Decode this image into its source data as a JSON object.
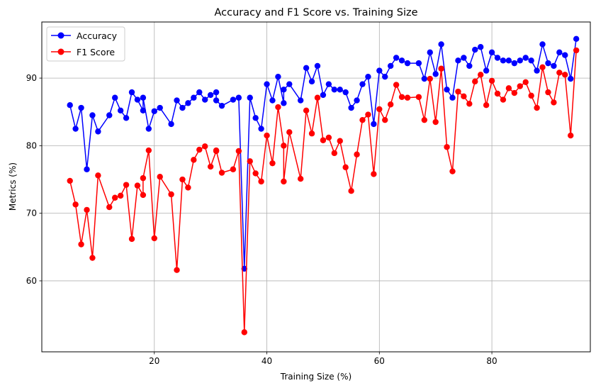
{
  "chart_data": {
    "type": "line",
    "title": "Accuracy and F1 Score vs. Training Size",
    "xlabel": "Training Size (%)",
    "ylabel": "Metrics (%)",
    "xlim": [
      0,
      97.5
    ],
    "ylim": [
      49.5,
      98.3
    ],
    "xticks": [
      20,
      40,
      60,
      80
    ],
    "yticks": [
      60,
      70,
      80,
      90
    ],
    "grid": true,
    "legend_position": "top-left",
    "x": [
      5,
      6,
      7,
      8,
      9,
      10,
      12,
      13,
      14,
      15,
      16,
      17,
      18,
      18,
      19,
      20,
      21,
      23,
      24,
      25,
      26,
      27,
      28,
      29,
      30,
      31,
      31,
      32,
      34,
      35,
      36,
      37,
      38,
      39,
      40,
      41,
      42,
      43,
      43,
      44,
      46,
      47,
      48,
      49,
      50,
      51,
      52,
      53,
      54,
      55,
      56,
      57,
      58,
      59,
      60,
      61,
      62,
      63,
      64,
      65,
      67,
      68,
      69,
      70,
      71,
      72,
      73,
      74,
      75,
      76,
      77,
      78,
      79,
      80,
      81,
      82,
      83,
      84,
      85,
      86,
      87,
      88,
      89,
      90,
      91,
      92,
      93,
      94,
      95
    ],
    "series": [
      {
        "name": "Accuracy",
        "color": "#0000ff",
        "values": [
          86.0,
          82.5,
          85.6,
          76.5,
          84.5,
          82.1,
          84.5,
          87.1,
          85.2,
          84.1,
          87.9,
          86.8,
          85.2,
          87.1,
          82.5,
          85.1,
          85.6,
          83.2,
          86.7,
          85.6,
          86.3,
          87.1,
          87.9,
          86.8,
          87.5,
          87.9,
          86.7,
          85.9,
          86.8,
          87.1,
          61.8,
          87.1,
          84.1,
          82.5,
          89.1,
          86.7,
          90.2,
          86.3,
          88.3,
          89.1,
          86.7,
          91.5,
          89.5,
          91.8,
          87.5,
          89.1,
          88.3,
          88.3,
          87.9,
          85.6,
          86.7,
          89.1,
          90.2,
          83.2,
          91.1,
          90.2,
          91.8,
          93.0,
          92.6,
          92.2,
          92.2,
          89.9,
          93.8,
          90.6,
          95.0,
          88.3,
          87.1,
          92.6,
          93.0,
          91.8,
          94.2,
          94.6,
          91.1,
          93.8,
          93.0,
          92.6,
          92.6,
          92.2,
          92.6,
          93.0,
          92.6,
          91.1,
          95.0,
          92.2,
          91.8,
          93.8,
          93.4,
          89.9,
          95.8
        ]
      },
      {
        "name": "F1 Score",
        "color": "#ff0000",
        "values": [
          74.8,
          71.3,
          65.4,
          70.5,
          63.4,
          75.6,
          70.9,
          72.3,
          72.6,
          74.2,
          66.2,
          74.1,
          72.7,
          75.2,
          79.3,
          66.3,
          75.4,
          72.8,
          61.6,
          75.0,
          73.8,
          77.9,
          79.4,
          79.9,
          76.9,
          79.2,
          79.3,
          76.0,
          76.5,
          79.2,
          52.4,
          77.7,
          75.9,
          74.7,
          81.5,
          77.4,
          85.7,
          80.0,
          74.7,
          82.0,
          75.1,
          85.2,
          81.8,
          87.1,
          80.8,
          81.2,
          78.9,
          80.7,
          76.8,
          73.3,
          78.7,
          83.8,
          84.6,
          75.8,
          85.4,
          83.8,
          86.1,
          89.0,
          87.2,
          87.1,
          87.2,
          83.8,
          89.9,
          83.5,
          91.4,
          79.8,
          76.2,
          88.0,
          87.3,
          86.2,
          89.5,
          90.5,
          86.0,
          89.6,
          87.7,
          86.8,
          88.5,
          87.8,
          88.8,
          89.4,
          87.4,
          85.6,
          91.6,
          87.9,
          86.4,
          90.8,
          90.5,
          81.5,
          94.1
        ]
      }
    ]
  }
}
